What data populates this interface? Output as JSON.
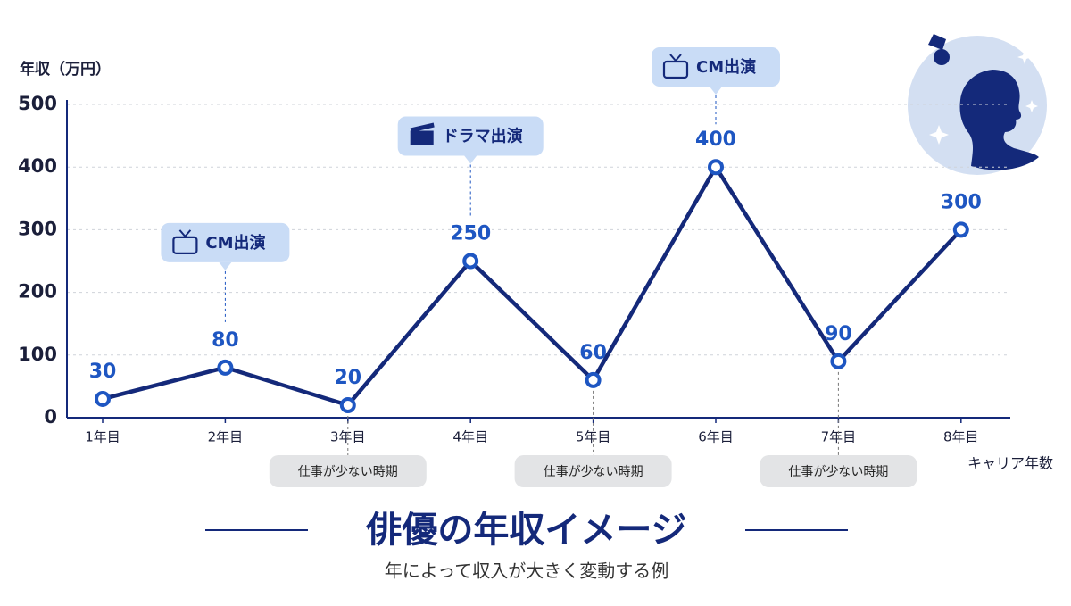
{
  "chart_data": {
    "type": "line",
    "title": "俳優の年収イメージ",
    "subtitle": "年によって収入が大きく変動する例",
    "y_label": "年収（万円）",
    "x_label": "キャリア年数",
    "categories": [
      "1年目",
      "2年目",
      "3年目",
      "4年目",
      "5年目",
      "6年目",
      "7年目",
      "8年目"
    ],
    "values": [
      30,
      80,
      20,
      250,
      60,
      400,
      90,
      300
    ],
    "color": "#14297a",
    "ylim": [
      0,
      500
    ],
    "yticks": [
      0,
      100,
      200,
      300,
      400,
      500
    ],
    "grid": true,
    "callouts": [
      {
        "text": "CM出演",
        "category": "2年目"
      },
      {
        "text": "ドラマ出演",
        "category": "4年目"
      },
      {
        "text": "CM出演",
        "category": "6年目"
      }
    ],
    "notes": [
      {
        "text": "仕事が少ない時期",
        "category": "3年目"
      },
      {
        "text": "仕事が少ない時期",
        "category": "5年目"
      },
      {
        "text": "仕事が少ない時期",
        "category": "7年目"
      }
    ]
  }
}
